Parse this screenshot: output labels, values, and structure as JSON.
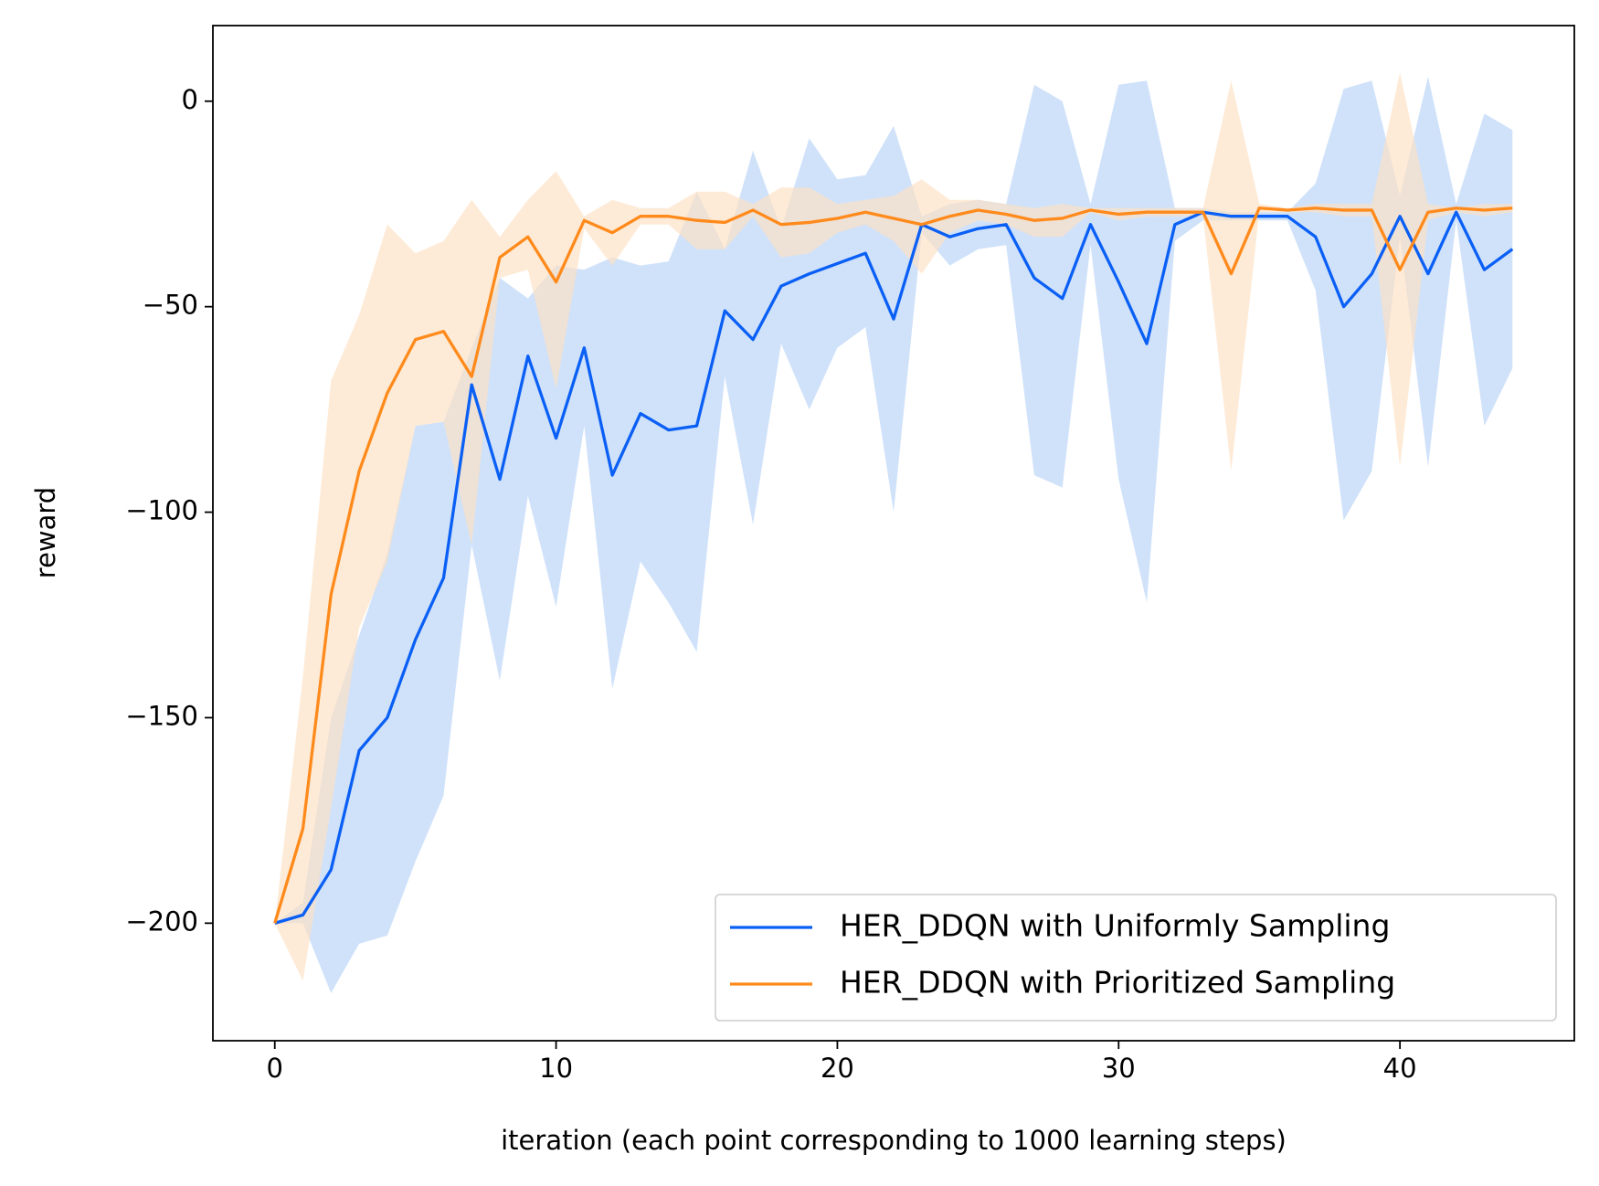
{
  "chart_data": {
    "type": "line",
    "xlabel": "iteration (each point corresponding to 1000 learning steps)",
    "ylabel": "reward",
    "x": [
      0,
      1,
      2,
      3,
      4,
      5,
      6,
      7,
      8,
      9,
      10,
      11,
      12,
      13,
      14,
      15,
      16,
      17,
      18,
      19,
      20,
      21,
      22,
      23,
      24,
      25,
      26,
      27,
      28,
      29,
      30,
      31,
      32,
      33,
      34,
      35,
      36,
      37,
      38,
      39,
      40,
      41,
      42,
      43,
      44
    ],
    "xlim": [
      -2.2,
      46.2
    ],
    "xticks": [
      0,
      10,
      20,
      30,
      40
    ],
    "ylim": [
      -228.6,
      18.4
    ],
    "yticks": [
      0,
      {
        "value": -50,
        "label": "−50"
      },
      {
        "value": -100,
        "label": "−100"
      },
      {
        "value": -150,
        "label": "−150"
      },
      {
        "value": -200,
        "label": "−200"
      }
    ],
    "legend": "lower right",
    "series": [
      {
        "name": "HER_DDQN with Uniformly Sampling",
        "color": "#0a5ff5",
        "band_color": "#b7d2f8",
        "values": [
          -200,
          -198,
          -187,
          -158,
          -150,
          -131,
          -116,
          -69,
          -92,
          -62,
          -82,
          -60,
          -91,
          -76,
          -80,
          -79,
          -51,
          -58,
          -45,
          -42,
          -39.5,
          -37,
          -53,
          -30,
          -33,
          -31,
          -30,
          -43,
          -48,
          -30,
          -44,
          -59,
          -30,
          -27,
          -28,
          -28,
          -28,
          -33,
          -50,
          -42,
          -28,
          -42,
          -27,
          -41,
          -36
        ],
        "upper": [
          -200,
          -195,
          -150,
          -130,
          -110,
          -79,
          -78,
          -60,
          -43,
          -48,
          -40,
          -41,
          -38,
          -40,
          -39,
          -22,
          -36,
          -12,
          -31,
          -9,
          -19,
          -18,
          -6,
          -28,
          -25,
          -24,
          -25,
          4,
          0,
          -25,
          4,
          5,
          -26,
          -26,
          -27,
          -27,
          -27,
          -20,
          3,
          5,
          -23,
          6,
          -25,
          -3,
          -7
        ],
        "lower": [
          -200,
          -200,
          -217,
          -205,
          -203,
          -185,
          -169,
          -108,
          -141,
          -96,
          -123,
          -79,
          -143,
          -112,
          -122,
          -134,
          -67,
          -103,
          -59,
          -75,
          -60,
          -55,
          -100,
          -32,
          -40,
          -36,
          -35,
          -91,
          -94,
          -35,
          -92,
          -122,
          -34,
          -29,
          -29,
          -29,
          -29,
          -46,
          -102,
          -90,
          -33,
          -89,
          -29,
          -79,
          -65
        ]
      },
      {
        "name": "HER_DDQN with Prioritized Sampling",
        "color": "#ff8a1c",
        "band_color": "#fde0c2",
        "values": [
          -200,
          -177,
          -120,
          -90,
          -71,
          -58,
          -56,
          -67,
          -38,
          -33,
          -44,
          -29,
          -32,
          -28,
          -28,
          -29,
          -29.5,
          -26.5,
          -30,
          -29.5,
          -28.5,
          -27,
          -28.5,
          -30,
          -28,
          -26.5,
          -27.5,
          -29,
          -28.5,
          -26.5,
          -27.5,
          -27,
          -27,
          -27,
          -42,
          -26,
          -26.5,
          -26,
          -26.5,
          -26.5,
          -41,
          -27,
          -26,
          -26.5,
          -26
        ],
        "upper": [
          -200,
          -140,
          -68,
          -52,
          -30,
          -37,
          -34,
          -24,
          -33,
          -24,
          -17,
          -28,
          -24,
          -26,
          -26,
          -22,
          -22,
          -25,
          -21,
          -21,
          -25,
          -24,
          -23,
          -19,
          -24,
          -24,
          -25,
          -26,
          -25,
          -26,
          -26,
          -26,
          -26,
          -26,
          5,
          -25,
          -26,
          -25,
          -25,
          -25,
          7,
          -25,
          -26,
          -25,
          -25
        ],
        "lower": [
          -200,
          -214,
          -172,
          -128,
          -112,
          -79,
          -78,
          -108,
          -43,
          -41,
          -70,
          -31,
          -40,
          -30,
          -30,
          -36,
          -36,
          -28,
          -38,
          -37,
          -32,
          -30,
          -34,
          -42,
          -32,
          -29,
          -30,
          -33,
          -33,
          -27,
          -29,
          -28,
          -28,
          -28,
          -90,
          -27,
          -27,
          -27,
          -28,
          -28,
          -89,
          -29,
          -27,
          -28,
          -27
        ]
      }
    ]
  }
}
